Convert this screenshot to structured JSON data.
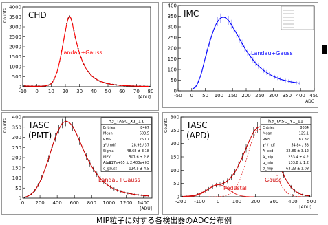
{
  "caption": "MIP粒子に対する各検出器のADC分布例",
  "colors": {
    "chd_fit": "#ff0000",
    "imc_fit": "#0000ff",
    "tasc_fit": "#cc0000",
    "pedestal_fit": "#e02020",
    "data": "#000000",
    "imc_data": "#9090ee"
  },
  "chart_data": [
    {
      "id": "chd",
      "type": "scatter",
      "title": "CHD",
      "fit_label": "Landau+Gauss",
      "xlabel": "[ADU]",
      "ylabel": "Counts",
      "xlim": [
        -10,
        80
      ],
      "ylim": [
        0,
        4000
      ],
      "xticks": [
        -10,
        0,
        10,
        20,
        30,
        40,
        50,
        60,
        70,
        80
      ],
      "yticks": [
        0,
        500,
        1000,
        1500,
        2000,
        2500,
        3000,
        3500,
        4000
      ],
      "x": [
        -9,
        -8,
        -7,
        -6,
        -5,
        -4,
        -3,
        -2,
        -1,
        0,
        1,
        2,
        3,
        4,
        5,
        6,
        7,
        8,
        9,
        10,
        11,
        12,
        13,
        14,
        15,
        16,
        17,
        18,
        19,
        20,
        21,
        22,
        23,
        24,
        25,
        26,
        27,
        28,
        29,
        30,
        31,
        32,
        33,
        34,
        35,
        36,
        37,
        38,
        39,
        40,
        41,
        42,
        43,
        44,
        45,
        46,
        47,
        48,
        49,
        50,
        51,
        52,
        53,
        54,
        55,
        56,
        57,
        58,
        59,
        60,
        61,
        62,
        63,
        64,
        65,
        66,
        67,
        68,
        69,
        70,
        71,
        72,
        73,
        74,
        75,
        76,
        77,
        78,
        79
      ],
      "y": [
        40,
        35,
        30,
        30,
        30,
        25,
        25,
        25,
        25,
        25,
        25,
        25,
        25,
        30,
        35,
        45,
        60,
        80,
        110,
        160,
        240,
        360,
        520,
        720,
        980,
        1280,
        1620,
        2000,
        2400,
        2800,
        3150,
        3420,
        3520,
        3400,
        3130,
        2800,
        2480,
        2180,
        1910,
        1670,
        1460,
        1280,
        1120,
        980,
        860,
        760,
        670,
        590,
        520,
        460,
        410,
        365,
        325,
        290,
        260,
        235,
        210,
        190,
        170,
        155,
        140,
        127,
        115,
        105,
        96,
        88,
        80,
        73,
        67,
        62,
        57,
        52,
        48,
        45,
        41,
        38,
        35,
        33,
        31,
        29,
        27,
        25,
        24,
        22,
        21,
        20,
        19,
        18,
        17
      ]
    },
    {
      "id": "imc",
      "type": "scatter",
      "title": "IMC",
      "fit_label": "Landau+Gauss",
      "xlabel": "ADC",
      "ylabel": "",
      "xlim": [
        -50,
        450
      ],
      "ylim": [
        0,
        400
      ],
      "xticks": [
        -50,
        0,
        50,
        100,
        150,
        200,
        250,
        300,
        350,
        400,
        450
      ],
      "yticks": [
        0,
        50,
        100,
        150,
        200,
        250,
        300,
        350,
        400
      ],
      "x": [
        5,
        15,
        25,
        35,
        45,
        55,
        65,
        75,
        85,
        95,
        105,
        115,
        125,
        135,
        145,
        155,
        165,
        175,
        185,
        195,
        205,
        215,
        225,
        235,
        245,
        255,
        265,
        275,
        285,
        295,
        305,
        315,
        325,
        335,
        345,
        355,
        365,
        375,
        385,
        395
      ],
      "y": [
        10,
        20,
        45,
        80,
        130,
        180,
        225,
        265,
        300,
        325,
        340,
        345,
        342,
        330,
        312,
        290,
        268,
        245,
        222,
        200,
        180,
        162,
        145,
        130,
        117,
        105,
        95,
        86,
        78,
        71,
        65,
        60,
        55,
        51,
        48,
        45,
        42,
        40,
        38,
        36
      ]
    },
    {
      "id": "tasc_pmt",
      "type": "scatter",
      "title": "TASC",
      "subtitle": "(PMT)",
      "fit_label": "Landau+Gauss",
      "xlabel": "[ADU]",
      "ylabel": "Counts",
      "xlim": [
        0,
        1500
      ],
      "ylim": [
        0,
        400
      ],
      "xticks": [
        0,
        200,
        400,
        600,
        800,
        1000,
        1200,
        1400
      ],
      "yticks": [
        0,
        50,
        100,
        150,
        200,
        250,
        300,
        350,
        400
      ],
      "x": [
        20,
        60,
        100,
        140,
        180,
        220,
        260,
        300,
        340,
        380,
        420,
        460,
        500,
        540,
        580,
        620,
        660,
        700,
        740,
        780,
        820,
        860,
        900,
        940,
        980,
        1020,
        1060,
        1100,
        1140,
        1180,
        1220,
        1260,
        1300,
        1340,
        1380,
        1420,
        1460
      ],
      "y": [
        4,
        10,
        20,
        38,
        65,
        100,
        145,
        195,
        250,
        300,
        340,
        368,
        378,
        372,
        352,
        320,
        282,
        242,
        205,
        172,
        143,
        118,
        97,
        80,
        66,
        55,
        46,
        39,
        33,
        28,
        24,
        21,
        18,
        16,
        14,
        12,
        11
      ],
      "stats": {
        "title": "h3_TASC_X1_11",
        "rows": [
          [
            "Entries",
            "8467"
          ],
          [
            "Mean",
            "603.5"
          ],
          [
            "RMS",
            "250.7"
          ],
          [
            "χ² / ndf",
            "28.92 / 37"
          ],
          [
            "Sigma",
            "48.68 ± 3.18"
          ],
          [
            "MPV",
            "507.6 ± 2.8"
          ],
          [
            "Area",
            "1.817e+05 ± 2.403e+03"
          ],
          [
            "σ_gauss",
            "124.5 ± 4.5"
          ]
        ]
      }
    },
    {
      "id": "tasc_apd",
      "type": "scatter",
      "title": "TASC",
      "subtitle": "(APD)",
      "fit_label": "Gauss",
      "pedestal_label": "Pedestal",
      "xlabel": "[ADU]",
      "ylabel": "Counts",
      "xlim": [
        -200,
        500
      ],
      "ylim": [
        0,
        300
      ],
      "xticks": [
        -200,
        -100,
        0,
        100,
        200,
        300,
        400,
        500
      ],
      "yticks": [
        0,
        50,
        100,
        150,
        200,
        250,
        300
      ],
      "x": [
        -190,
        -170,
        -150,
        -130,
        -110,
        -90,
        -70,
        -50,
        -30,
        -10,
        10,
        30,
        50,
        70,
        90,
        110,
        130,
        150,
        170,
        190,
        210,
        230,
        250,
        270,
        290,
        310,
        330,
        350,
        370,
        390,
        410,
        430,
        450,
        470,
        490
      ],
      "y": [
        1,
        2,
        3,
        5,
        9,
        15,
        22,
        30,
        38,
        44,
        46,
        52,
        60,
        74,
        94,
        120,
        150,
        183,
        215,
        243,
        260,
        262,
        248,
        222,
        188,
        150,
        115,
        83,
        57,
        37,
        23,
        14,
        8,
        5,
        3
      ],
      "stats": {
        "title": "h3_TASC_Y1_11",
        "rows": [
          [
            "Entries",
            "8064"
          ],
          [
            "Mean",
            "129.1"
          ],
          [
            "RMS",
            "87.32"
          ],
          [
            "χ² / ndf",
            "54.84 / 53"
          ],
          [
            "A_ped",
            "32.86 ± 3.12"
          ],
          [
            "A_mip",
            "253.4 ± 4.2"
          ],
          [
            "μ_mip",
            "133.8 ± 1.2"
          ],
          [
            "σ_mip",
            "63.23 ± 1.08"
          ]
        ]
      }
    }
  ]
}
